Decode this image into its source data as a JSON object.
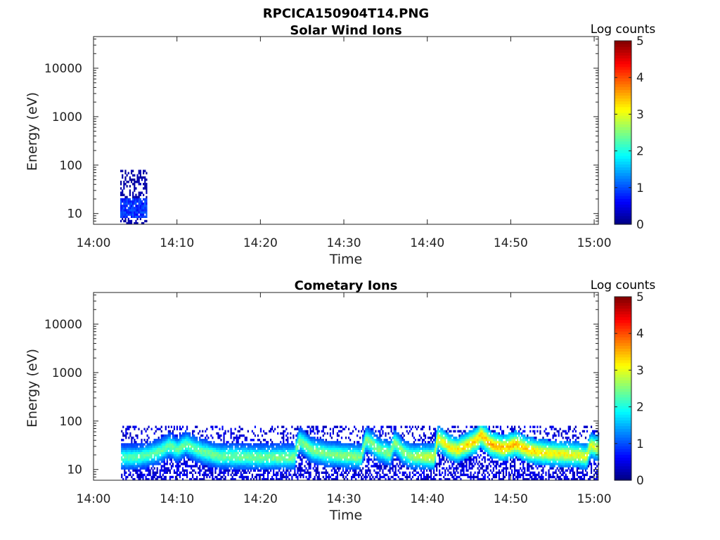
{
  "figure": {
    "title": "RPCICA150904T14.PNG"
  },
  "chart_data": [
    {
      "type": "heatmap",
      "title": "Solar Wind Ions",
      "xlabel": "Time",
      "ylabel": "Energy (eV)",
      "x_ticks": [
        "14:00",
        "14:10",
        "14:20",
        "14:30",
        "14:40",
        "14:50",
        "15:00"
      ],
      "xlim_minutes": [
        0,
        60.5
      ],
      "y_scale": "log",
      "y_ticks": [
        10,
        100,
        1000,
        10000
      ],
      "y_tick_labels": [
        "10",
        "100",
        "1000",
        "10000"
      ],
      "ylim": [
        6,
        45000
      ],
      "colorbar": {
        "label": "Log counts",
        "ticks": [
          "0",
          "1",
          "2",
          "3",
          "4",
          "5"
        ],
        "range": [
          0,
          5
        ],
        "colormap": "jet"
      },
      "regions": [
        {
          "t_start_min": 3.2,
          "t_end_min": 6.3,
          "e_low": 6,
          "e_high": 80,
          "peak_log_counts": 1.0,
          "background_log_counts": 0.2,
          "peak_energy_range": [
            8,
            20
          ]
        }
      ]
    },
    {
      "type": "heatmap",
      "title": "Cometary Ions",
      "xlabel": "Time",
      "ylabel": "Energy (eV)",
      "x_ticks": [
        "14:00",
        "14:10",
        "14:20",
        "14:30",
        "14:40",
        "14:50",
        "15:00"
      ],
      "xlim_minutes": [
        0,
        60.5
      ],
      "y_scale": "log",
      "y_ticks": [
        10,
        100,
        1000,
        10000
      ],
      "y_tick_labels": [
        "10",
        "100",
        "1000",
        "10000"
      ],
      "ylim": [
        6,
        45000
      ],
      "colorbar": {
        "label": "Log counts",
        "ticks": [
          "0",
          "1",
          "2",
          "3",
          "4",
          "5"
        ],
        "range": [
          0,
          5
        ],
        "colormap": "jet"
      },
      "data_start_min": 3.3,
      "data_end_min": 60.5,
      "upper_scatter_limit_eV": 80,
      "band_center_eV": [
        [
          3.3,
          17
        ],
        [
          5.0,
          17
        ],
        [
          6.5,
          19
        ],
        [
          8.0,
          23
        ],
        [
          9.0,
          30
        ],
        [
          10.0,
          24
        ],
        [
          11.0,
          32
        ],
        [
          12.0,
          26
        ],
        [
          13.0,
          22
        ],
        [
          15.0,
          18
        ],
        [
          20.0,
          17
        ],
        [
          24.0,
          17
        ],
        [
          24.6,
          38
        ],
        [
          26.0,
          24
        ],
        [
          28.0,
          20
        ],
        [
          32.0,
          17
        ],
        [
          32.6,
          40
        ],
        [
          34.0,
          25
        ],
        [
          35.5,
          20
        ],
        [
          36.0,
          35
        ],
        [
          37.0,
          22
        ],
        [
          38.0,
          18
        ],
        [
          40.8,
          17
        ],
        [
          41.2,
          42
        ],
        [
          42.5,
          28
        ],
        [
          43.5,
          24
        ],
        [
          45.0,
          32
        ],
        [
          46.0,
          40
        ],
        [
          46.3,
          50
        ],
        [
          47.5,
          32
        ],
        [
          49.0,
          26
        ],
        [
          50.5,
          32
        ],
        [
          52.0,
          24
        ],
        [
          54.0,
          21
        ],
        [
          58.0,
          19
        ],
        [
          59.0,
          17
        ],
        [
          59.5,
          30
        ],
        [
          60.5,
          26
        ]
      ],
      "band_peak_log_counts": [
        [
          3.3,
          2.3
        ],
        [
          10.0,
          2.4
        ],
        [
          20.0,
          2.5
        ],
        [
          30.0,
          2.6
        ],
        [
          38.0,
          2.6
        ],
        [
          41.0,
          3.1
        ],
        [
          45.0,
          3.4
        ],
        [
          47.0,
          3.6
        ],
        [
          51.0,
          3.5
        ],
        [
          55.0,
          3.2
        ],
        [
          60.5,
          3.0
        ]
      ]
    }
  ]
}
